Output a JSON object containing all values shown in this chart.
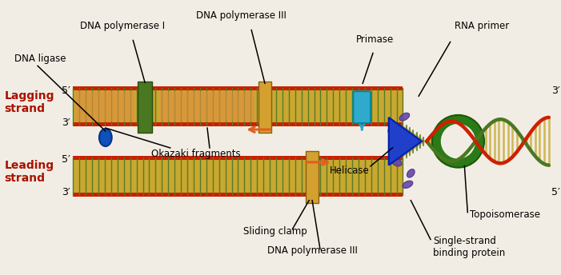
{
  "bg_color": "#f2ede4",
  "colors": {
    "red_border": "#c82000",
    "dna_fill": "#c8a830",
    "backbone_green": "#5a7a28",
    "helix_red": "#cc2000",
    "helix_green": "#4a7820",
    "pol_I_color": "#4a7820",
    "pol_III_color": "#d4a030",
    "helicase_color": "#2040cc",
    "primase_color": "#30aacc",
    "topo_color": "#2a7a18",
    "ssb_color": "#6644aa",
    "ligase_color": "#1050bb",
    "okazaki_fill": "#e09040"
  },
  "labels": {
    "dna_ligase": "DNA ligase",
    "dna_pol_I": "DNA polymerase I",
    "dna_pol_III_top": "DNA polymerase III",
    "primase": "Primase",
    "rna_primer": "RNA primer",
    "lagging": "Lagging\nstrand",
    "leading": "Leading\nstrand",
    "okazaki": "Okazaki fragments",
    "helicase": "Helicase",
    "sliding_clamp": "Sliding clamp",
    "dna_pol_III_bot": "DNA polymerase III",
    "single_strand": "Single-strand\nbinding protein",
    "topoisomerase": "Topoisomerase"
  }
}
